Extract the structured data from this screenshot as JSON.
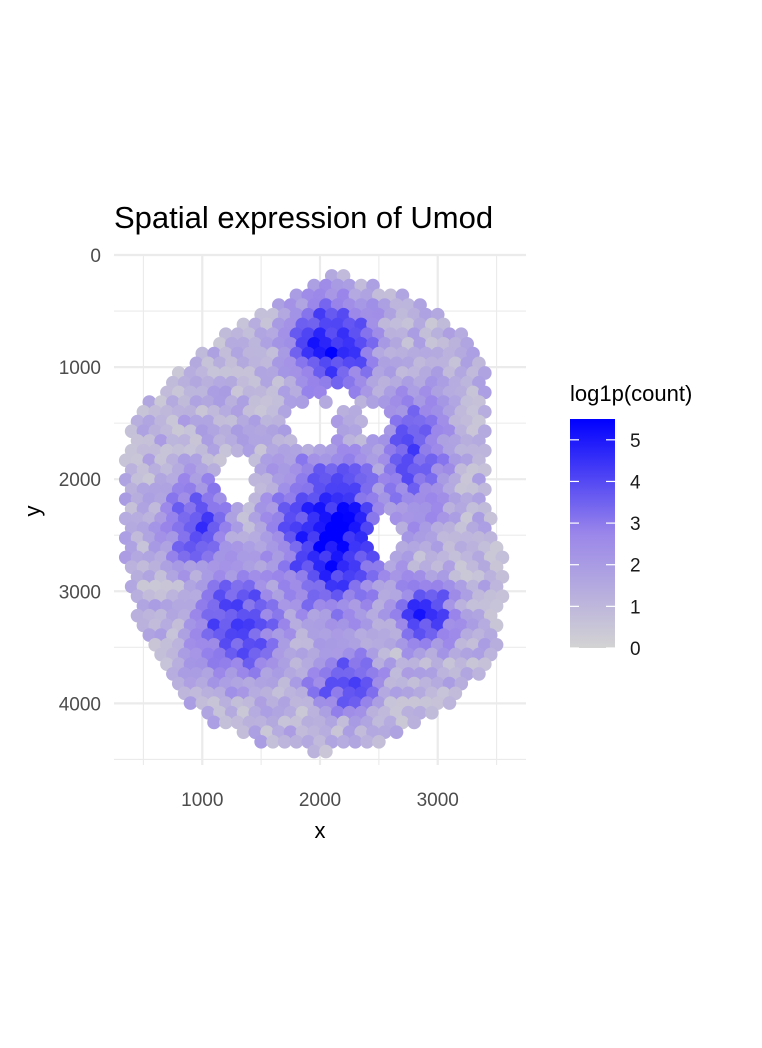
{
  "chart_data": {
    "type": "scatter",
    "title": "Spatial expression of Umod",
    "xlabel": "x",
    "ylabel": "y",
    "xlim": [
      250,
      3750
    ],
    "ylim": [
      0,
      4550
    ],
    "y_reversed": true,
    "x_ticks": [
      1000,
      2000,
      3000
    ],
    "y_ticks": [
      0,
      1000,
      2000,
      3000,
      4000
    ],
    "x_tick_labels": [
      "1000",
      "2000",
      "3000"
    ],
    "y_tick_labels": [
      "0",
      "1000",
      "2000",
      "3000",
      "4000"
    ],
    "grid": true,
    "legend": {
      "title": "log1p(count)",
      "placement": "right",
      "color_low": "#d3d3d3",
      "color_high": "#0000ff",
      "limits": [
        0,
        5.5
      ],
      "ticks": [
        0,
        1,
        2,
        3,
        4,
        5
      ],
      "tick_labels": [
        "0",
        "1",
        "2",
        "3",
        "4",
        "5"
      ]
    },
    "spot_spacing": 100,
    "outline": [
      [
        2100,
        170
      ],
      [
        2350,
        200
      ],
      [
        2750,
        380
      ],
      [
        3150,
        620
      ],
      [
        3400,
        950
      ],
      [
        3450,
        1500
      ],
      [
        3400,
        2200
      ],
      [
        3500,
        2450
      ],
      [
        3600,
        2900
      ],
      [
        3500,
        3500
      ],
      [
        3250,
        3900
      ],
      [
        2900,
        4150
      ],
      [
        2500,
        4350
      ],
      [
        2000,
        4450
      ],
      [
        1500,
        4350
      ],
      [
        1050,
        4150
      ],
      [
        700,
        3800
      ],
      [
        450,
        3300
      ],
      [
        330,
        2700
      ],
      [
        300,
        2100
      ],
      [
        400,
        1500
      ],
      [
        750,
        1050
      ],
      [
        1200,
        700
      ],
      [
        1600,
        420
      ]
    ],
    "holes": [
      {
        "x": 1930,
        "y": 1500,
        "rx": 200,
        "ry": 200
      },
      {
        "x": 2480,
        "y": 1500,
        "rx": 110,
        "ry": 160
      },
      {
        "x": 1280,
        "y": 2000,
        "rx": 160,
        "ry": 240
      },
      {
        "x": 2550,
        "y": 2550,
        "rx": 120,
        "ry": 250
      },
      {
        "x": 2170,
        "y": 1250,
        "rx": 120,
        "ry": 100
      }
    ],
    "hotspots": [
      {
        "x": 2100,
        "y": 2500,
        "rx": 550,
        "ry": 800,
        "value": 5.3
      },
      {
        "x": 2100,
        "y": 800,
        "rx": 450,
        "ry": 500,
        "value": 4.8
      },
      {
        "x": 2900,
        "y": 3200,
        "rx": 300,
        "ry": 400,
        "value": 4.5
      },
      {
        "x": 1300,
        "y": 3300,
        "rx": 450,
        "ry": 600,
        "value": 4.3
      },
      {
        "x": 950,
        "y": 2400,
        "rx": 350,
        "ry": 500,
        "value": 4.0
      },
      {
        "x": 2800,
        "y": 1800,
        "rx": 350,
        "ry": 700,
        "value": 4.0
      },
      {
        "x": 2200,
        "y": 3800,
        "rx": 400,
        "ry": 350,
        "value": 4.0
      }
    ],
    "edge_value": 1.2
  }
}
